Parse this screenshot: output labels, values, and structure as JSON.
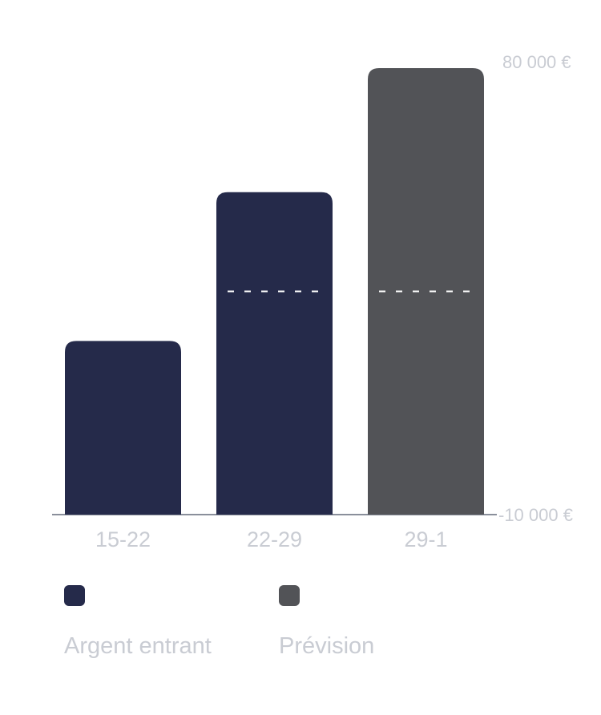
{
  "colors": {
    "incoming": "#252a4a",
    "forecast": "#525357",
    "axis": "#8a8f9b",
    "tick_text": "#c9ccd3",
    "marker": "#ffffff"
  },
  "legend": [
    {
      "label": "Argent entrant",
      "color": "#252a4a"
    },
    {
      "label": "Prévision",
      "color": "#525357"
    }
  ],
  "chart_data": {
    "type": "bar",
    "categories": [
      "15-22",
      "22-29",
      "29-1"
    ],
    "values": [
      25000,
      55000,
      80000
    ],
    "bar_colors": [
      "#252a4a",
      "#252a4a",
      "#525357"
    ],
    "markers": [
      null,
      35000,
      35000
    ],
    "ylim": [
      -10000,
      80000
    ],
    "y_tick_labels": [
      "80 000 €",
      "-10 000 €"
    ],
    "y_axis_side": "right",
    "grid": false,
    "legend_position": "bottom"
  }
}
